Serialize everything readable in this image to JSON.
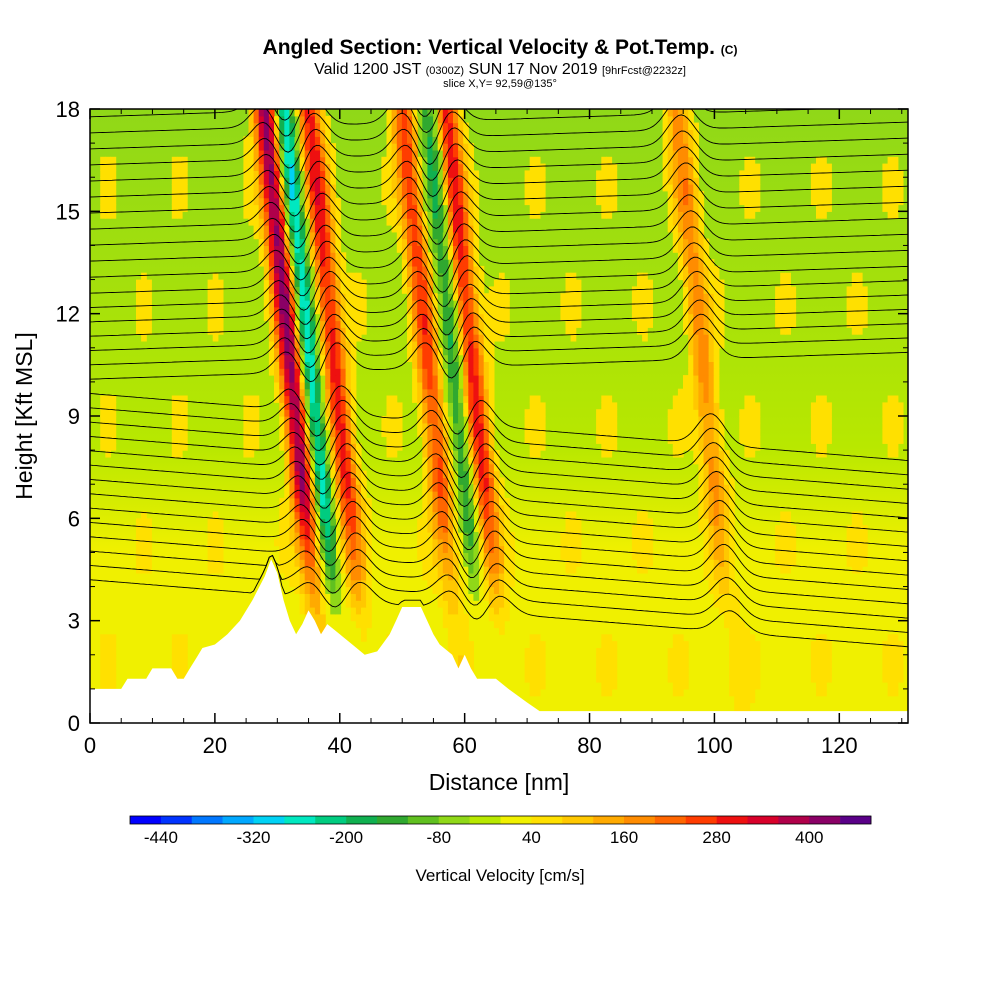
{
  "title": {
    "main": "Angled Section: Vertical Velocity & Pot.Temp.",
    "copyright": "(C)",
    "valid_prefix": "Valid 1200 JST",
    "valid_utc": "(0300Z)",
    "valid_date": "SUN 17 Nov 2019",
    "forecast": "[9hrFcst@2232z]",
    "slice": "slice X,Y= 92,59@135°"
  },
  "chart_data": {
    "type": "heatmap",
    "subtype": "vertical cross-section with contours",
    "xlabel": "Distance [nm]",
    "ylabel": "Height [Kft MSL]",
    "xlim": [
      0,
      131
    ],
    "ylim": [
      0,
      18
    ],
    "xticks": [
      0,
      20,
      40,
      60,
      80,
      100,
      120
    ],
    "yticks": [
      0,
      3,
      6,
      9,
      12,
      15,
      18
    ],
    "colorbar": {
      "label": "Vertical Velocity [cm/s]",
      "min": -480,
      "max": 480,
      "step": 40,
      "tick_labels": [
        "-440",
        "-320",
        "-200",
        "-80",
        "40",
        "160",
        "280",
        "400"
      ],
      "colors": [
        "#0000ff",
        "#0033ff",
        "#0077ff",
        "#00a8ff",
        "#00d2f5",
        "#00e8c0",
        "#00cc80",
        "#10b050",
        "#30a830",
        "#60c020",
        "#90d818",
        "#b8e800",
        "#f0f000",
        "#ffe000",
        "#ffc800",
        "#ffaa00",
        "#ff8c00",
        "#ff6600",
        "#ff3c00",
        "#ee1010",
        "#d8002a",
        "#b0004a",
        "#8a0066",
        "#5a0088"
      ]
    },
    "updrafts": [
      {
        "x_nm": 33,
        "peak_cm_s": 400
      },
      {
        "x_nm": 40,
        "peak_cm_s": 280
      },
      {
        "x_nm": 55,
        "peak_cm_s": 240
      },
      {
        "x_nm": 62,
        "peak_cm_s": 280
      },
      {
        "x_nm": 99,
        "peak_cm_s": 160
      }
    ],
    "downdrafts": [
      {
        "x_nm": 36,
        "peak_cm_s": -320
      },
      {
        "x_nm": 59,
        "peak_cm_s": -200
      }
    ],
    "terrain_kft": [
      [
        0,
        1.0
      ],
      [
        5,
        1.0
      ],
      [
        6,
        1.3
      ],
      [
        9,
        1.3
      ],
      [
        10,
        1.6
      ],
      [
        13,
        1.6
      ],
      [
        14,
        1.3
      ],
      [
        15,
        1.3
      ],
      [
        16,
        1.6
      ],
      [
        17,
        1.9
      ],
      [
        18,
        2.2
      ],
      [
        20,
        2.3
      ],
      [
        22,
        2.6
      ],
      [
        24,
        3.0
      ],
      [
        26,
        3.6
      ],
      [
        28,
        4.3
      ],
      [
        29,
        4.8
      ],
      [
        30,
        4.4
      ],
      [
        31,
        3.6
      ],
      [
        32,
        3.0
      ],
      [
        33,
        2.6
      ],
      [
        34,
        2.9
      ],
      [
        35,
        3.3
      ],
      [
        36,
        3.0
      ],
      [
        37,
        2.6
      ],
      [
        38,
        2.9
      ],
      [
        40,
        2.6
      ],
      [
        42,
        2.3
      ],
      [
        44,
        2.0
      ],
      [
        46,
        2.1
      ],
      [
        48,
        2.6
      ],
      [
        49,
        3.0
      ],
      [
        50,
        3.4
      ],
      [
        53,
        3.4
      ],
      [
        54,
        3.0
      ],
      [
        55,
        2.6
      ],
      [
        56,
        2.3
      ],
      [
        58,
        2.0
      ],
      [
        59,
        1.6
      ],
      [
        60,
        2.0
      ],
      [
        61,
        1.6
      ],
      [
        62,
        1.3
      ],
      [
        65,
        1.3
      ],
      [
        67,
        1.0
      ],
      [
        70,
        0.6
      ],
      [
        72,
        0.35
      ],
      [
        131,
        0.35
      ]
    ]
  }
}
